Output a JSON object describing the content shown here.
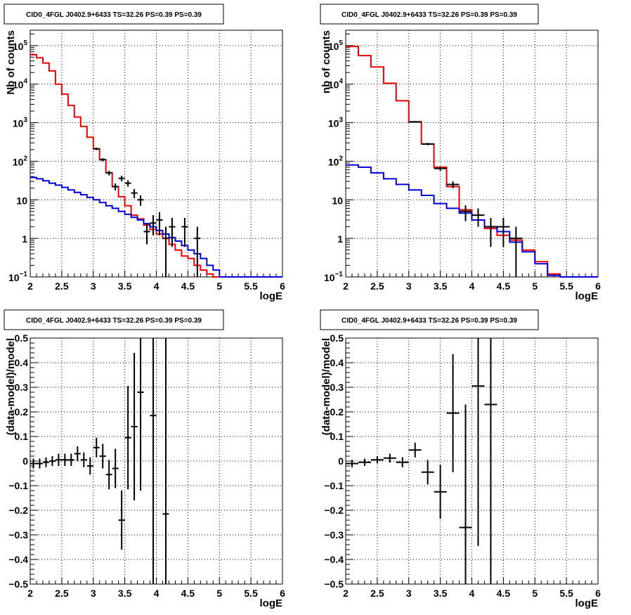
{
  "chart_data": [
    {
      "type": "line",
      "title": "CID0_4FGL J0402.9+6433 TS=32.26 PS=0.39 PS=0.39",
      "xlabel": "logE",
      "ylabel": "Nb of counts",
      "xlim": [
        2,
        6
      ],
      "ylim": [
        0.1,
        250000
      ],
      "yscale": "log",
      "grid": true,
      "xticks": [
        "2",
        "2.5",
        "3",
        "3.5",
        "4",
        "4.5",
        "5",
        "5.5",
        "6"
      ],
      "yticks": [
        {
          "v": 0.1,
          "b": "10",
          "s": "−1"
        },
        {
          "v": 1,
          "b": "1",
          "s": ""
        },
        {
          "v": 10,
          "b": "10",
          "s": ""
        },
        {
          "v": 100,
          "b": "10",
          "s": "2"
        },
        {
          "v": 1000,
          "b": "10",
          "s": "3"
        },
        {
          "v": 10000,
          "b": "10",
          "s": "4"
        },
        {
          "v": 100000,
          "b": "10",
          "s": "5"
        }
      ],
      "bin_edges": [
        2,
        2.1,
        2.2,
        2.3,
        2.4,
        2.5,
        2.6,
        2.7,
        2.8,
        2.9,
        3,
        3.1,
        3.2,
        3.3,
        3.4,
        3.5,
        3.6,
        3.7,
        3.8,
        3.9,
        4,
        4.1,
        4.2,
        4.3,
        4.4,
        4.5,
        4.6,
        4.7,
        4.8,
        4.9,
        5,
        5.1,
        5.2,
        5.3,
        5.4,
        5.5,
        5.6,
        5.7,
        5.8,
        5.9,
        6
      ],
      "series": [
        {
          "color": "#ee0000",
          "style": "hist",
          "values": [
            58000,
            48000,
            35000,
            22000,
            10000,
            5500,
            2800,
            1400,
            800,
            420,
            210,
            110,
            50,
            22,
            12,
            7,
            4,
            3.2,
            2.2,
            1.7,
            1.3,
            1,
            0.7,
            0.5,
            0.35,
            0.3,
            0.2,
            0.15,
            0.12,
            0.1,
            0.1,
            0.1,
            0.1,
            0.1,
            0.1,
            0.1,
            0.1,
            0.1,
            0.1,
            0.1
          ]
        },
        {
          "color": "#0000dd",
          "style": "hist",
          "values": [
            38,
            35,
            31,
            27,
            24,
            21,
            18,
            15.5,
            13.5,
            11.5,
            10,
            8.5,
            7,
            6,
            5,
            4.2,
            3.5,
            3,
            2.4,
            2,
            1.6,
            1.3,
            1.05,
            0.85,
            0.65,
            0.5,
            0.4,
            0.3,
            0.2,
            0.15,
            0.1,
            0.1,
            0.1,
            0.1,
            0.1,
            0.1,
            0.1,
            0.1,
            0.1,
            0.1
          ]
        },
        {
          "color": "#000000",
          "style": "points",
          "points": [
            {
              "x": 3.05,
              "y": 210,
              "lo": 195,
              "hi": 225
            },
            {
              "x": 3.15,
              "y": 110,
              "lo": 100,
              "hi": 121
            },
            {
              "x": 3.25,
              "y": 50,
              "lo": 43,
              "hi": 57
            },
            {
              "x": 3.35,
              "y": 22,
              "lo": 17.5,
              "hi": 26.5
            },
            {
              "x": 3.45,
              "y": 36,
              "lo": 30,
              "hi": 42
            },
            {
              "x": 3.55,
              "y": 27,
              "lo": 22,
              "hi": 32
            },
            {
              "x": 3.65,
              "y": 15,
              "lo": 11,
              "hi": 19
            },
            {
              "x": 3.75,
              "y": 10,
              "lo": 7,
              "hi": 13
            },
            {
              "x": 3.85,
              "y": 1.5,
              "lo": 0.7,
              "hi": 2.5
            },
            {
              "x": 3.95,
              "y": 2.5,
              "lo": 1.2,
              "hi": 4
            },
            {
              "x": 4.05,
              "y": 3,
              "lo": 1.2,
              "hi": 4.8
            },
            {
              "x": 4.15,
              "y": 1,
              "lo": 0.1,
              "hi": 2
            },
            {
              "x": 4.25,
              "y": 2,
              "lo": 0.6,
              "hi": 3.4
            },
            {
              "x": 4.45,
              "y": 2,
              "lo": 0.6,
              "hi": 3.4
            },
            {
              "x": 4.65,
              "y": 1,
              "lo": 0.1,
              "hi": 2
            }
          ]
        }
      ]
    },
    {
      "type": "line",
      "title": "CID0_4FGL J0402.9+6433 TS=32.26 PS=0.39 PS=0.39",
      "xlabel": "logE",
      "ylabel": "nb of counts",
      "xlim": [
        2,
        6
      ],
      "ylim": [
        0.1,
        250000
      ],
      "yscale": "log",
      "grid": true,
      "xticks": [
        "2",
        "2.5",
        "3",
        "3.5",
        "4",
        "4.5",
        "5",
        "5.5",
        "6"
      ],
      "yticks": [
        {
          "v": 0.1,
          "b": "10",
          "s": "−1"
        },
        {
          "v": 1,
          "b": "1",
          "s": ""
        },
        {
          "v": 10,
          "b": "10",
          "s": ""
        },
        {
          "v": 100,
          "b": "10",
          "s": "2"
        },
        {
          "v": 1000,
          "b": "10",
          "s": "3"
        },
        {
          "v": 10000,
          "b": "10",
          "s": "4"
        },
        {
          "v": 100000,
          "b": "10",
          "s": "5"
        }
      ],
      "bin_edges": [
        2,
        2.2,
        2.4,
        2.6,
        2.8,
        3,
        3.2,
        3.4,
        3.6,
        3.8,
        4,
        4.2,
        4.4,
        4.6,
        4.8,
        5,
        5.2,
        5.4,
        5.6,
        5.8,
        6
      ],
      "series": [
        {
          "color": "#ee0000",
          "style": "hist",
          "values": [
            95000,
            55000,
            28000,
            10500,
            3700,
            1050,
            280,
            70,
            22,
            5.5,
            3,
            1.8,
            1.2,
            0.9,
            0.5,
            0.25,
            0.12,
            0.1,
            0.1,
            0.1
          ]
        },
        {
          "color": "#0000dd",
          "style": "hist",
          "values": [
            80,
            70,
            50,
            35,
            25,
            18,
            13,
            8,
            6,
            4.5,
            3,
            2,
            1.5,
            0.8,
            0.45,
            0.22,
            0.11,
            0.1,
            0.1,
            0.1
          ]
        },
        {
          "color": "#000000",
          "style": "points",
          "points": [
            {
              "x": 3.1,
              "y": 1050,
              "lo": 1000,
              "hi": 1100
            },
            {
              "x": 3.3,
              "y": 280,
              "lo": 260,
              "hi": 300
            },
            {
              "x": 3.5,
              "y": 65,
              "lo": 57,
              "hi": 73
            },
            {
              "x": 3.7,
              "y": 25,
              "lo": 20,
              "hi": 30
            },
            {
              "x": 3.9,
              "y": 5,
              "lo": 2.8,
              "hi": 7.2
            },
            {
              "x": 4.1,
              "y": 4,
              "lo": 2,
              "hi": 6
            },
            {
              "x": 4.3,
              "y": 2,
              "lo": 0.6,
              "hi": 3.4
            },
            {
              "x": 4.5,
              "y": 2,
              "lo": 0.6,
              "hi": 3.4
            },
            {
              "x": 4.7,
              "y": 1,
              "lo": 0.1,
              "hi": 2
            }
          ]
        }
      ]
    },
    {
      "type": "scatter",
      "title": "CID0_4FGL J0402.9+6433 TS=32.26 PS=0.39 PS=0.39",
      "xlabel": "logE",
      "ylabel": "(data-model)/model",
      "xlim": [
        2,
        6
      ],
      "ylim": [
        -0.5,
        0.5
      ],
      "grid": true,
      "xticks": [
        "2",
        "2.5",
        "3",
        "3.5",
        "4",
        "4.5",
        "5",
        "5.5",
        "6"
      ],
      "yticks": [
        "−0.5",
        "−0.4",
        "−0.3",
        "−0.2",
        "−0.1",
        "0",
        "0.1",
        "0.2",
        "0.3",
        "0.4",
        "0.5"
      ],
      "points": [
        {
          "x": 2.05,
          "y": -0.01,
          "err": 0.02
        },
        {
          "x": 2.15,
          "y": -0.01,
          "err": 0.02
        },
        {
          "x": 2.25,
          "y": -0.005,
          "err": 0.02
        },
        {
          "x": 2.35,
          "y": 0.0,
          "err": 0.02
        },
        {
          "x": 2.45,
          "y": 0.005,
          "err": 0.025
        },
        {
          "x": 2.55,
          "y": 0.005,
          "err": 0.025
        },
        {
          "x": 2.65,
          "y": 0.005,
          "err": 0.025
        },
        {
          "x": 2.75,
          "y": 0.03,
          "err": 0.03
        },
        {
          "x": 2.85,
          "y": 0.005,
          "err": 0.03
        },
        {
          "x": 2.95,
          "y": -0.02,
          "err": 0.035
        },
        {
          "x": 3.05,
          "y": 0.055,
          "err": 0.04
        },
        {
          "x": 3.15,
          "y": 0.02,
          "err": 0.05
        },
        {
          "x": 3.25,
          "y": -0.055,
          "err": 0.06
        },
        {
          "x": 3.35,
          "y": -0.03,
          "err": 0.08
        },
        {
          "x": 3.45,
          "y": -0.24,
          "err": 0.12
        },
        {
          "x": 3.55,
          "y": 0.095,
          "err": 0.21
        },
        {
          "x": 3.65,
          "y": 0.14,
          "err": 0.3
        },
        {
          "x": 3.75,
          "y": 0.28,
          "err": 0.4
        },
        {
          "x": 3.95,
          "y": 0.185,
          "err": 0.8
        },
        {
          "x": 4.15,
          "y": -0.215,
          "err": 0.9
        }
      ]
    },
    {
      "type": "scatter",
      "title": "CID0_4FGL J0402.9+6433 TS=32.26 PS=0.39 PS=0.39",
      "xlabel": "logE",
      "ylabel": "(data-model)/model",
      "xlim": [
        2,
        6
      ],
      "ylim": [
        -0.5,
        0.5
      ],
      "grid": true,
      "xticks": [
        "2",
        "2.5",
        "3",
        "3.5",
        "4",
        "4.5",
        "5",
        "5.5",
        "6"
      ],
      "yticks": [
        "−0.5",
        "−0.4",
        "−0.3",
        "−0.2",
        "−0.1",
        "0",
        "0.1",
        "0.2",
        "0.3",
        "0.4",
        "0.5"
      ],
      "points": [
        {
          "x": 2.1,
          "y": -0.01,
          "err": 0.015
        },
        {
          "x": 2.3,
          "y": -0.005,
          "err": 0.015
        },
        {
          "x": 2.5,
          "y": 0.005,
          "err": 0.015
        },
        {
          "x": 2.7,
          "y": 0.012,
          "err": 0.018
        },
        {
          "x": 2.9,
          "y": -0.005,
          "err": 0.02
        },
        {
          "x": 3.1,
          "y": 0.045,
          "err": 0.03
        },
        {
          "x": 3.3,
          "y": -0.045,
          "err": 0.05
        },
        {
          "x": 3.5,
          "y": -0.125,
          "err": 0.11
        },
        {
          "x": 3.7,
          "y": 0.195,
          "err": 0.24
        },
        {
          "x": 3.9,
          "y": -0.27,
          "err": 0.5
        },
        {
          "x": 4.1,
          "y": 0.305,
          "err": 0.65
        },
        {
          "x": 4.3,
          "y": 0.23,
          "err": 0.85
        }
      ]
    }
  ]
}
